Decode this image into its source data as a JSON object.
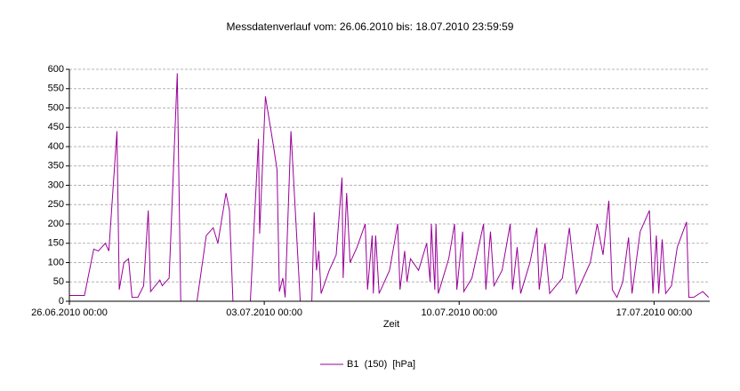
{
  "chart_data": {
    "type": "line",
    "title": "Messdatenverlauf vom: 26.06.2010 bis: 18.07.2010 23:59:59",
    "x_label": "Zeit",
    "xlim": [
      "2010-06-26T00:00",
      "2010-07-18T23:59:59"
    ],
    "xticks": [
      {
        "value": "2010-06-26T00:00",
        "label": "26.06.2010 00:00"
      },
      {
        "value": "2010-07-03T00:00",
        "label": "03.07.2010 00:00"
      },
      {
        "value": "2010-07-10T00:00",
        "label": "10.07.2010 00:00"
      },
      {
        "value": "2010-07-17T00:00",
        "label": "17.07.2010 00:00"
      }
    ],
    "ylim": [
      0,
      600
    ],
    "yticks": [
      0,
      50,
      100,
      150,
      200,
      250,
      300,
      350,
      400,
      450,
      500,
      550,
      600
    ],
    "grid": true,
    "legend": "bottom",
    "x": [
      "2010-06-26T00:00",
      "2010-06-26T13:00",
      "2010-06-26T21:00",
      "2010-06-27T01:00",
      "2010-06-27T07:00",
      "2010-06-27T10:00",
      "2010-06-27T17:00",
      "2010-06-27T19:00",
      "2010-06-27T23:00",
      "2010-06-28T03:00",
      "2010-06-28T06:00",
      "2010-06-28T11:00",
      "2010-06-28T16:00",
      "2010-06-28T20:00",
      "2010-06-28T22:00",
      "2010-06-29T06:00",
      "2010-06-29T08:00",
      "2010-06-29T14:00",
      "2010-06-29T21:00",
      "2010-06-30T00:00",
      "2010-06-30T14:00",
      "2010-06-30T22:00",
      "2010-07-01T04:00",
      "2010-07-01T08:00",
      "2010-07-01T15:00",
      "2010-07-01T18:00",
      "2010-07-01T21:00",
      "2010-07-02T12:00",
      "2010-07-02T19:00",
      "2010-07-02T20:00",
      "2010-07-03T01:00",
      "2010-07-03T08:00",
      "2010-07-03T11:00",
      "2010-07-03T13:00",
      "2010-07-03T16:00",
      "2010-07-03T18:00",
      "2010-07-03T23:00",
      "2010-07-04T07:00",
      "2010-07-04T17:00",
      "2010-07-04T19:00",
      "2010-07-04T21:00",
      "2010-07-04T23:00",
      "2010-07-05T01:00",
      "2010-07-05T08:00",
      "2010-07-05T14:00",
      "2010-07-05T19:00",
      "2010-07-05T20:00",
      "2010-07-05T23:00",
      "2010-07-06T02:00",
      "2010-07-06T08:00",
      "2010-07-06T15:00",
      "2010-07-06T17:00",
      "2010-07-06T21:00",
      "2010-07-06T22:00",
      "2010-07-07T00:00",
      "2010-07-07T03:00",
      "2010-07-07T12:00",
      "2010-07-07T19:00",
      "2010-07-07T21:00",
      "2010-07-08T01:00",
      "2010-07-08T03:00",
      "2010-07-08T06:00",
      "2010-07-08T13:00",
      "2010-07-08T20:00",
      "2010-07-08T23:00",
      "2010-07-09T00:00",
      "2010-07-09T03:00",
      "2010-07-09T04:00",
      "2010-07-09T06:00",
      "2010-07-09T15:00",
      "2010-07-09T20:00",
      "2010-07-09T22:00",
      "2010-07-10T03:00",
      "2010-07-10T04:00",
      "2010-07-10T11:00",
      "2010-07-10T21:00",
      "2010-07-10T23:00",
      "2010-07-11T03:00",
      "2010-07-11T06:00",
      "2010-07-11T13:00",
      "2010-07-11T20:00",
      "2010-07-11T22:00",
      "2010-07-12T02:00",
      "2010-07-12T05:00",
      "2010-07-12T13:00",
      "2010-07-12T19:00",
      "2010-07-12T21:00",
      "2010-07-13T02:00",
      "2010-07-13T06:00",
      "2010-07-13T17:00",
      "2010-07-13T23:00",
      "2010-07-14T05:00",
      "2010-07-14T17:00",
      "2010-07-14T23:00",
      "2010-07-15T04:00",
      "2010-07-15T09:00",
      "2010-07-15T12:00",
      "2010-07-15T16:00",
      "2010-07-15T21:00",
      "2010-07-16T02:00",
      "2010-07-16T05:00",
      "2010-07-16T12:00",
      "2010-07-16T20:00",
      "2010-07-16T23:00",
      "2010-07-17T02:00",
      "2010-07-17T04:00",
      "2010-07-17T07:00",
      "2010-07-17T10:00",
      "2010-07-17T15:00",
      "2010-07-17T20:00",
      "2010-07-18T04:00",
      "2010-07-18T06:00",
      "2010-07-18T10:00",
      "2010-07-18T18:00",
      "2010-07-18T23:00"
    ],
    "series": [
      {
        "name": "B1  (150)  [hPa]",
        "color": "#990099",
        "values": [
          15,
          15,
          135,
          130,
          150,
          130,
          440,
          30,
          100,
          110,
          10,
          10,
          40,
          235,
          25,
          55,
          40,
          60,
          590,
          0,
          0,
          170,
          190,
          150,
          280,
          235,
          0,
          0,
          420,
          175,
          530,
          400,
          340,
          25,
          60,
          10,
          440,
          0,
          0,
          230,
          80,
          130,
          20,
          80,
          120,
          320,
          60,
          280,
          100,
          140,
          200,
          30,
          170,
          20,
          170,
          20,
          80,
          200,
          30,
          130,
          50,
          110,
          80,
          150,
          50,
          200,
          30,
          200,
          20,
          110,
          200,
          30,
          180,
          25,
          60,
          200,
          30,
          180,
          40,
          80,
          200,
          30,
          140,
          20,
          100,
          190,
          30,
          150,
          20,
          60,
          190,
          20,
          100,
          200,
          120,
          260,
          30,
          10,
          50,
          165,
          20,
          180,
          235,
          20,
          170,
          20,
          160,
          20,
          40,
          140,
          205,
          10,
          10,
          25,
          10
        ]
      }
    ]
  }
}
